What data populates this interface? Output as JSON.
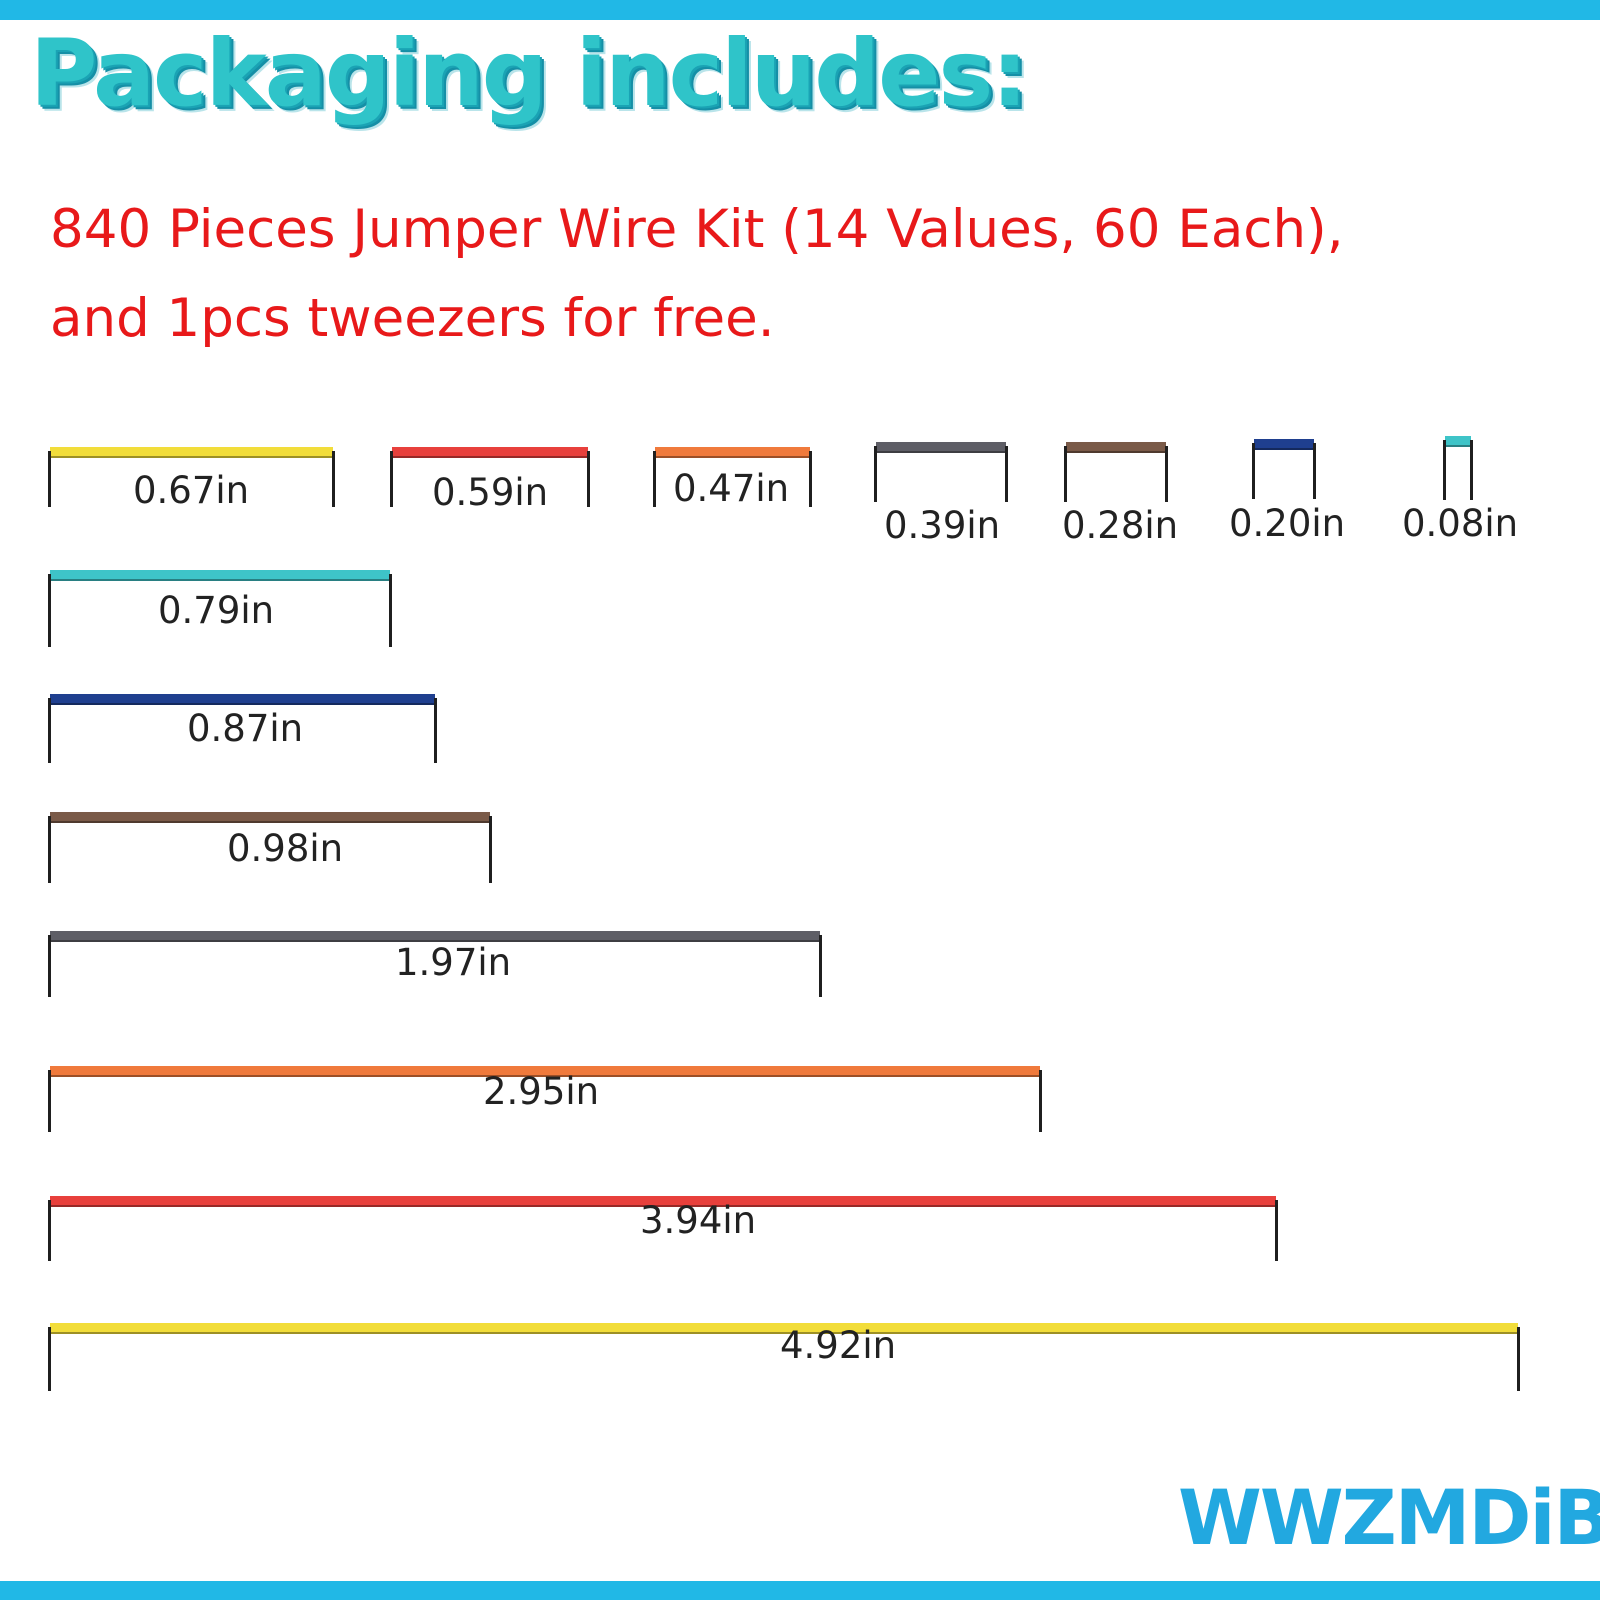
{
  "headline": "Packaging includes:",
  "subtitle_line1": "840 Pieces Jumper Wire Kit (14 Values, 60 Each),",
  "subtitle_line2": "and 1pcs tweezers for free.",
  "brand": "WWZMDiB",
  "colors": {
    "frame_bar": "#21b8e6",
    "headline": "#2fc4c9",
    "subtitle": "#e8191a",
    "brand": "#22a8e0"
  },
  "wires": [
    {
      "label": "0.67in",
      "color": "#f2dd3a"
    },
    {
      "label": "0.59in",
      "color": "#e8403c"
    },
    {
      "label": "0.47in",
      "color": "#f07a3c"
    },
    {
      "label": "0.39in",
      "color": "#5e5e66"
    },
    {
      "label": "0.28in",
      "color": "#7a5a48"
    },
    {
      "label": "0.20in",
      "color": "#1f3f8f"
    },
    {
      "label": "0.08in",
      "color": "#3ec4c8"
    },
    {
      "label": "0.79in",
      "color": "#3ec4c8"
    },
    {
      "label": "0.87in",
      "color": "#1f3f8f"
    },
    {
      "label": "0.98in",
      "color": "#7a5a48"
    },
    {
      "label": "1.97in",
      "color": "#5e5e66"
    },
    {
      "label": "2.95in",
      "color": "#f07a3c"
    },
    {
      "label": "3.94in",
      "color": "#e8403c"
    },
    {
      "label": "4.92in",
      "color": "#f2dd3a"
    }
  ]
}
